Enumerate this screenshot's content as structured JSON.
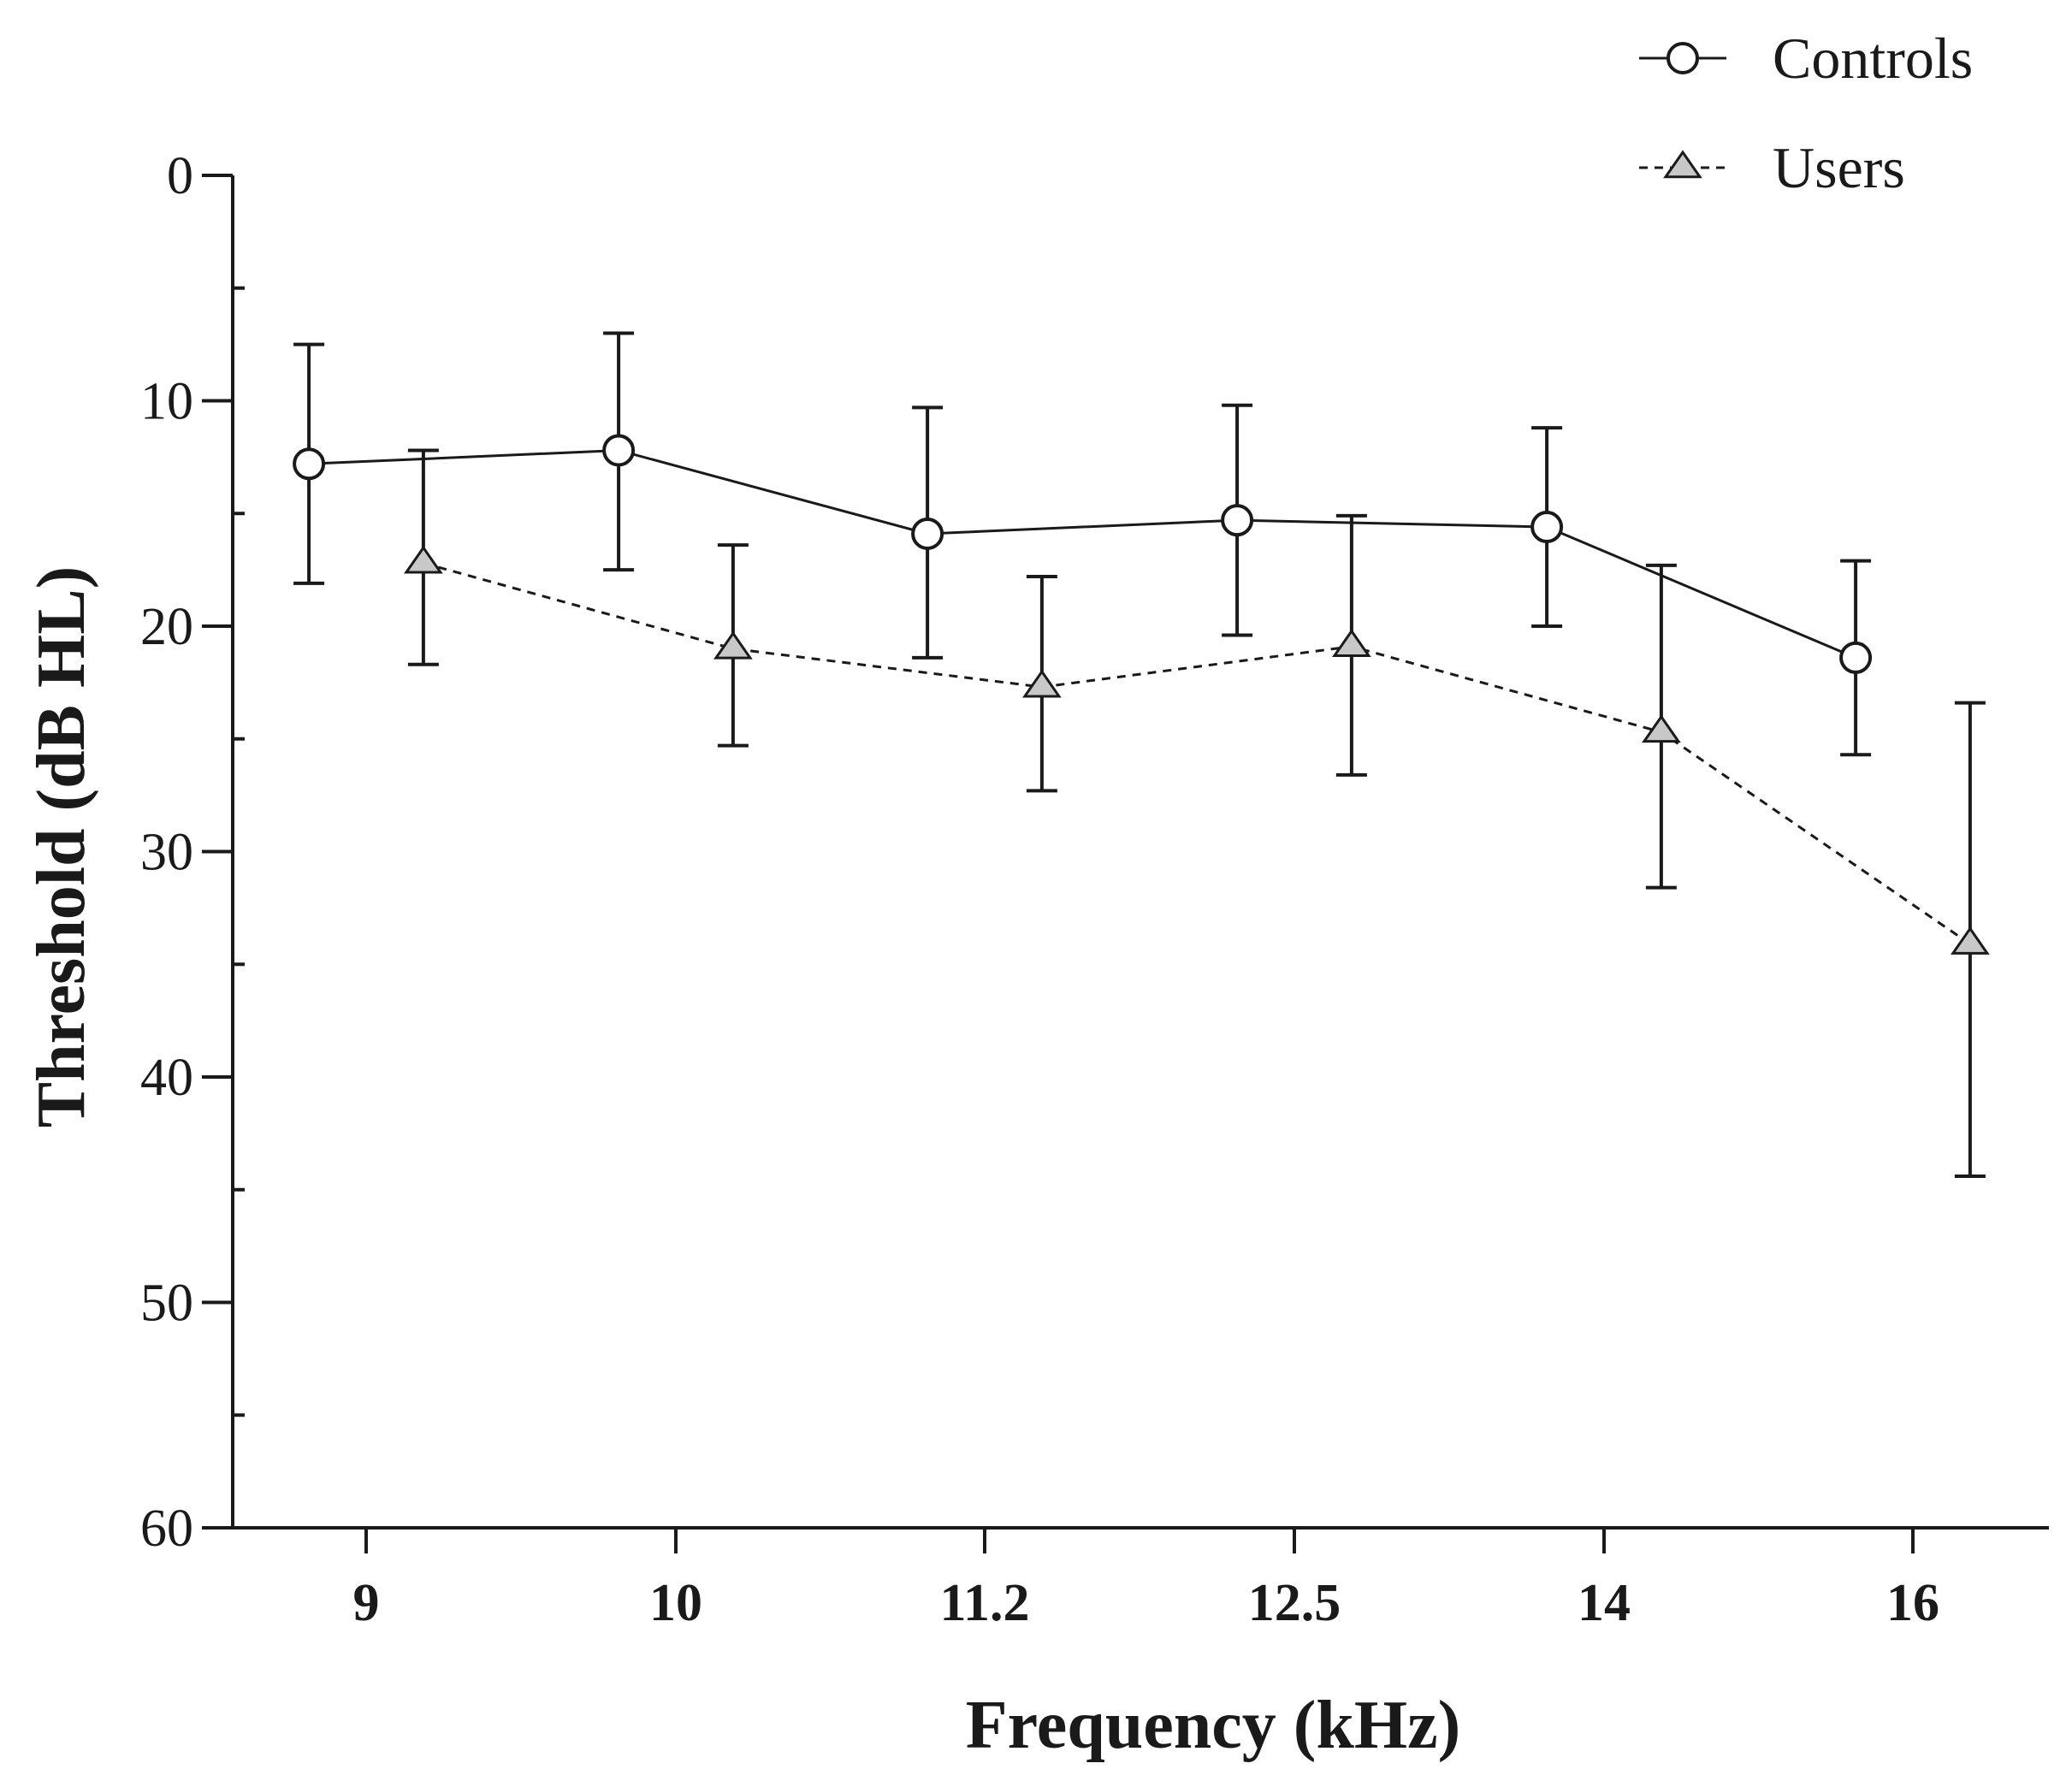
{
  "chart_data": {
    "type": "line",
    "title": "",
    "xlabel": "Frequency (kHz)",
    "ylabel": "Threshold (dB HL)",
    "categories": [
      "9",
      "10",
      "11.2",
      "12.5",
      "14",
      "16"
    ],
    "ylim": [
      0,
      60
    ],
    "y_inverted": true,
    "yticks": [
      0,
      10,
      20,
      30,
      40,
      50,
      60
    ],
    "y_minor_step": 5,
    "grid": false,
    "legend_position": "top-right",
    "series": [
      {
        "name": "Controls",
        "marker": "circle",
        "line_style": "solid",
        "marker_color": "#ffffff",
        "line_color": "#1a1a1a",
        "values": [
          12.8,
          12.2,
          15.9,
          15.3,
          15.6,
          21.4
        ],
        "err_low": [
          7.5,
          7.0,
          10.3,
          10.2,
          11.2,
          17.1
        ],
        "err_high": [
          18.1,
          17.5,
          21.4,
          20.4,
          20.0,
          25.7
        ]
      },
      {
        "name": "Users",
        "marker": "triangle",
        "line_style": "dashed",
        "marker_color": "#c8c8c8",
        "line_color": "#1a1a1a",
        "values": [
          17.2,
          21.0,
          22.7,
          20.9,
          24.7,
          34.1
        ],
        "err_low": [
          12.2,
          16.4,
          17.8,
          15.1,
          17.3,
          23.4
        ],
        "err_high": [
          21.7,
          25.3,
          27.3,
          26.6,
          31.6,
          44.4
        ]
      }
    ]
  }
}
